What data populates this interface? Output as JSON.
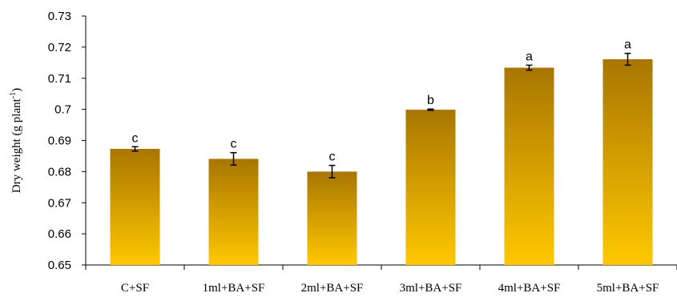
{
  "chart_data": {
    "type": "bar",
    "ylabel": "Dry weight (g plant",
    "ylabel_superscript": "-1",
    "ylabel_suffix": ")",
    "ylim": [
      0.65,
      0.73
    ],
    "yticks": [
      "0.65",
      "0.66",
      "0.67",
      "0.68",
      "0.69",
      "0.7",
      "0.71",
      "0.72",
      "0.73"
    ],
    "categories": [
      "C+SF",
      "1ml+BA+SF",
      "2ml+BA+SF",
      "3ml+BA+SF",
      "4ml+BA+SF",
      "5ml+BA+SF"
    ],
    "values": [
      0.6873,
      0.6841,
      0.68,
      0.6999,
      0.7134,
      0.7161
    ],
    "errors": [
      0.0007,
      0.002,
      0.002,
      0.0002,
      0.0008,
      0.0019
    ],
    "significance": [
      "c",
      "c",
      "c",
      "b",
      "a",
      "a"
    ],
    "grid": false,
    "legend": "none",
    "bar_color_top": "#a87600",
    "bar_color_bottom": "#ffc800"
  }
}
